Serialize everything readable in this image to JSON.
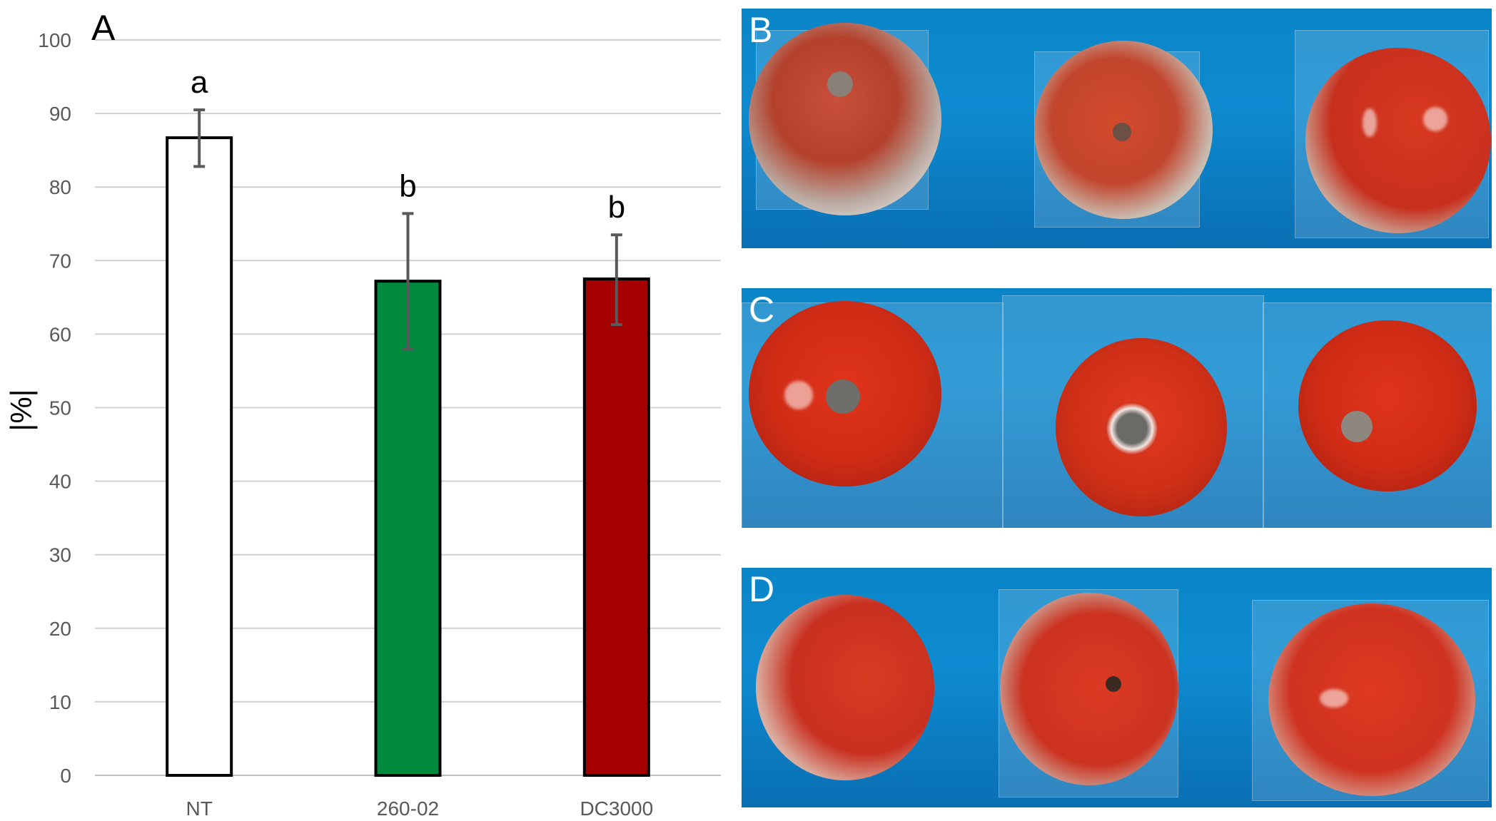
{
  "panel_a_label": "A",
  "photo_panels": [
    {
      "label": "B",
      "description_icon": "moldy-tomatoes-photo"
    },
    {
      "label": "C",
      "description_icon": "healthy-tomatoes-photo"
    },
    {
      "label": "D",
      "description_icon": "moldy-tomatoes-photo"
    }
  ],
  "colors": {
    "NT": "#ffffff",
    "260-02": "#008a3e",
    "DC3000": "#a50000",
    "grid": "#d0d0d0",
    "errorbar": "#595959"
  },
  "chart_data": {
    "type": "bar",
    "title": "",
    "xlabel": "",
    "ylabel": "|%|",
    "ylim": [
      0,
      100
    ],
    "yticks": [
      0,
      10,
      20,
      30,
      40,
      50,
      60,
      70,
      80,
      90,
      100
    ],
    "grid": true,
    "categories": [
      "NT",
      "260-02",
      "DC3000"
    ],
    "values": [
      86.7,
      67.2,
      67.5
    ],
    "error_low": [
      82.8,
      57.9,
      61.3
    ],
    "error_high": [
      90.5,
      76.4,
      73.5
    ],
    "significance_letters": [
      "a",
      "b",
      "b"
    ]
  }
}
